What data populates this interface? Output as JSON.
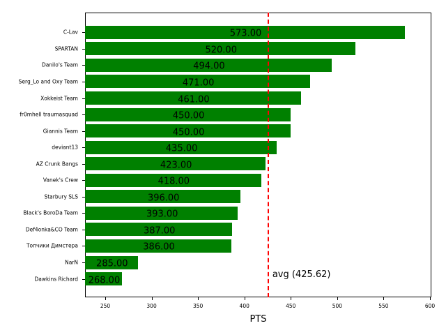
{
  "chart_data": {
    "type": "bar",
    "orientation": "horizontal",
    "title": "",
    "xlabel": "PTS",
    "ylabel": "",
    "xlim": [
      228.2,
      601.5
    ],
    "grid": false,
    "bar_color": "#008000",
    "categories": [
      "C-Lav",
      "SPARTAN",
      "Danilo's Team",
      "Serg_Lo and Oxy Team",
      "Xokkeist Team",
      "fr0mhell traumasquad",
      "Giannis Team",
      "deviant13",
      "AZ Crunk Bangs",
      "Vanek's Crew",
      "Starbury SLS",
      "Black's BoroDa Team",
      "Def4onka&CO Team",
      "Топчики Димстера",
      "NarN",
      "Dawkins Richard"
    ],
    "values": [
      573,
      520,
      494,
      471,
      461,
      450,
      450,
      435,
      423,
      418,
      396,
      393,
      387,
      386,
      285,
      268
    ],
    "value_labels": [
      "573.00",
      "520.00",
      "494.00",
      "471.00",
      "461.00",
      "450.00",
      "450.00",
      "435.00",
      "423.00",
      "418.00",
      "396.00",
      "393.00",
      "387.00",
      "386.00",
      "285.00",
      "268.00"
    ],
    "x_ticks": [
      250,
      300,
      350,
      400,
      450,
      500,
      550,
      600
    ],
    "x_tick_labels": [
      "250",
      "300",
      "350",
      "400",
      "450",
      "500",
      "550",
      "600"
    ],
    "reference_line": {
      "value": 425.62,
      "label": "avg (425.62)",
      "color": "#ff0000",
      "style": "dashed"
    }
  }
}
